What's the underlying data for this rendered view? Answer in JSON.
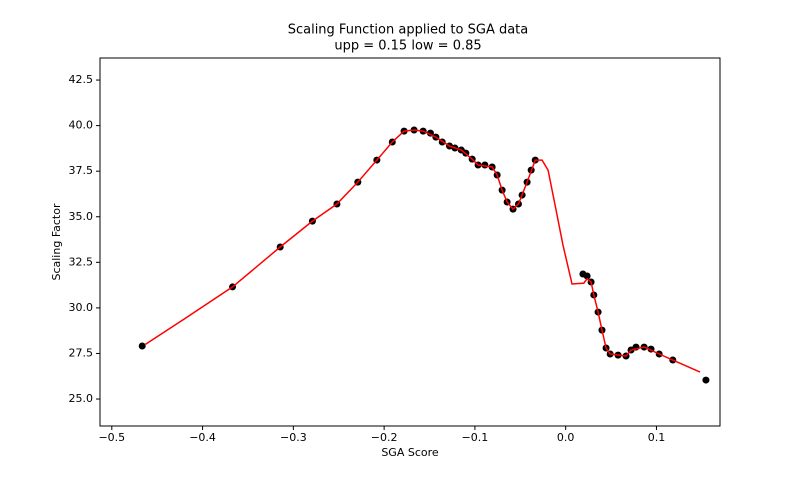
{
  "chart_data": {
    "type": "scatter-line",
    "title": "Scaling Function applied to SGA data",
    "subtitle": "upp = 0.15 low = 0.85",
    "x_label": "SGA Score",
    "y_label": "Scaling Factor",
    "xlim": [
      -0.513,
      0.17
    ],
    "ylim": [
      23.52,
      43.71
    ],
    "xticks": [
      {
        "value": -0.5,
        "label": "−0.5"
      },
      {
        "value": -0.4,
        "label": "−0.4"
      },
      {
        "value": -0.3,
        "label": "−0.3"
      },
      {
        "value": -0.2,
        "label": "−0.2"
      },
      {
        "value": -0.1,
        "label": "−0.1"
      },
      {
        "value": 0,
        "label": "0.0"
      },
      {
        "value": 0.1,
        "label": "0.1"
      }
    ],
    "yticks": [
      {
        "value": 25,
        "label": "25.0"
      },
      {
        "value": 27.5,
        "label": "27.5"
      },
      {
        "value": 30,
        "label": "30.0"
      },
      {
        "value": 32.5,
        "label": "32.5"
      },
      {
        "value": 35,
        "label": "35.0"
      },
      {
        "value": 37.5,
        "label": "37.5"
      },
      {
        "value": 40,
        "label": "40.0"
      },
      {
        "value": 42.5,
        "label": "42.5"
      }
    ],
    "series": [
      {
        "kind": "points",
        "color": "#000000",
        "x": [
          -0.4665,
          -0.367,
          -0.3145,
          -0.279,
          -0.252,
          -0.229,
          -0.208,
          -0.191,
          -0.178,
          -0.167,
          -0.157,
          -0.149,
          -0.143,
          -0.136,
          -0.128,
          -0.122,
          -0.115,
          -0.11,
          -0.103,
          -0.0965,
          -0.089,
          -0.081,
          -0.0755,
          -0.07,
          -0.0645,
          -0.058,
          -0.052,
          -0.048,
          -0.0425,
          -0.038,
          -0.0335,
          0.019,
          0.0236,
          0.028,
          0.031,
          0.0357,
          0.04,
          0.0445,
          0.049,
          0.0577,
          0.0665,
          0.072,
          0.0775,
          0.0864,
          0.094,
          0.103,
          0.118,
          0.1545
        ],
        "values": [
          27.91,
          31.15,
          33.34,
          34.76,
          35.7,
          36.9,
          38.11,
          39.1,
          39.7,
          39.76,
          39.7,
          39.59,
          39.37,
          39.1,
          38.88,
          38.77,
          38.66,
          38.49,
          38.16,
          37.84,
          37.84,
          37.73,
          37.29,
          36.46,
          35.81,
          35.42,
          35.7,
          36.19,
          36.9,
          37.56,
          38.11,
          31.86,
          31.75,
          31.42,
          30.71,
          29.77,
          28.78,
          27.8,
          27.47,
          27.41,
          27.36,
          27.69,
          27.85,
          27.85,
          27.74,
          27.47,
          27.14,
          26.04
        ]
      },
      {
        "kind": "line",
        "color": "#ff0000",
        "x": [
          -0.463,
          -0.42,
          -0.367,
          -0.3145,
          -0.279,
          -0.252,
          -0.229,
          -0.208,
          -0.191,
          -0.178,
          -0.167,
          -0.157,
          -0.143,
          -0.128,
          -0.115,
          -0.103,
          -0.0965,
          -0.081,
          -0.0755,
          -0.07,
          -0.0645,
          -0.058,
          -0.052,
          -0.0425,
          -0.0335,
          -0.026,
          -0.0194,
          -0.0106,
          -0.003,
          0.007,
          0.02,
          0.0236,
          0.028,
          0.031,
          0.0357,
          0.04,
          0.0445,
          0.049,
          0.0665,
          0.072,
          0.0864,
          0.103,
          0.118,
          0.148
        ],
        "values": [
          28.0,
          29.4,
          31.15,
          33.34,
          34.76,
          35.7,
          36.9,
          38.11,
          39.1,
          39.7,
          39.76,
          39.7,
          39.37,
          38.88,
          38.66,
          38.16,
          37.84,
          37.73,
          37.29,
          36.46,
          35.81,
          35.42,
          35.7,
          36.9,
          38.11,
          38.11,
          37.56,
          35.37,
          33.45,
          31.31,
          31.36,
          31.6,
          31.42,
          30.71,
          29.77,
          28.78,
          27.8,
          27.47,
          27.36,
          27.69,
          27.85,
          27.47,
          27.14,
          26.48
        ]
      }
    ]
  }
}
